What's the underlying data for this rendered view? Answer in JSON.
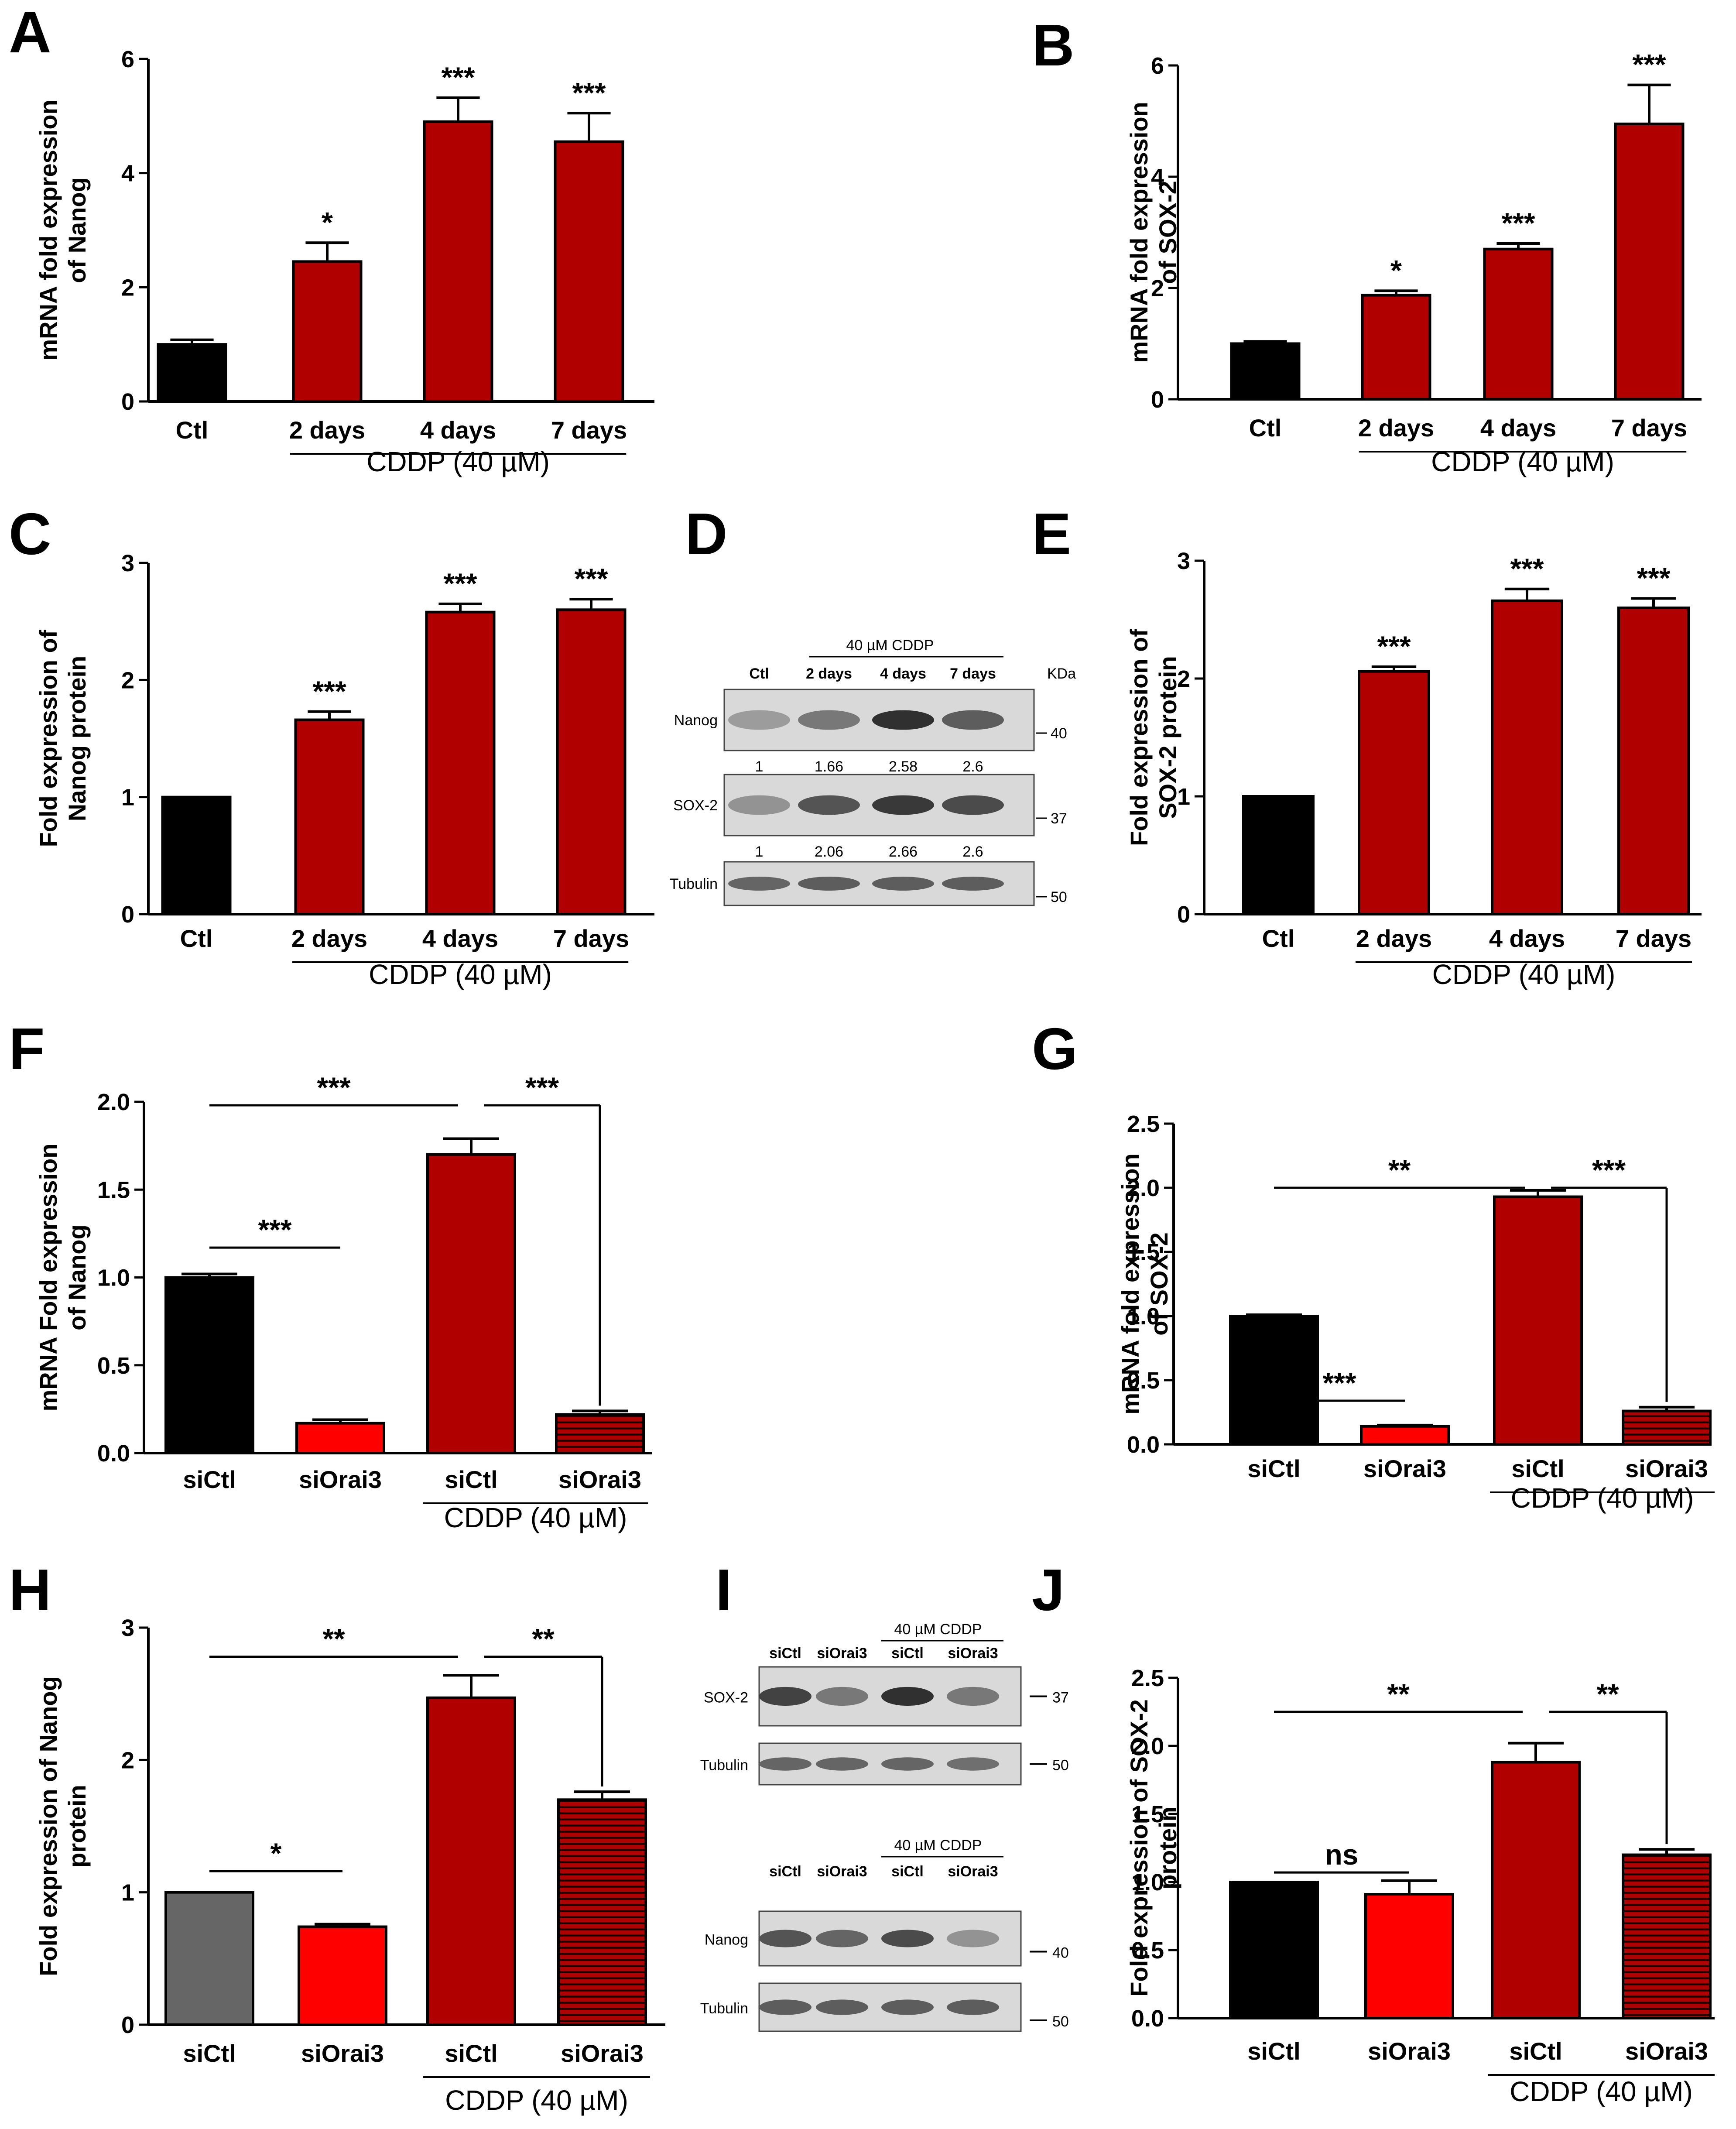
{
  "panel_labels": {
    "A": "A",
    "B": "B",
    "C": "C",
    "D": "D",
    "E": "E",
    "F": "F",
    "G": "G",
    "H": "H",
    "I": "I",
    "J": "J"
  },
  "colors": {
    "black": "#000000",
    "dark_red": "#b00000",
    "red": "#ff0000",
    "grey": "#666666"
  },
  "chart_data": [
    {
      "id": "A",
      "type": "bar",
      "ylabel": "mRNA fold expression\nof Nanog",
      "ylim": [
        0,
        6
      ],
      "yticks": [
        0,
        2,
        4,
        6
      ],
      "categories": [
        "Ctl",
        "2 days",
        "4 days",
        "7 days"
      ],
      "values": [
        1.0,
        2.45,
        4.9,
        4.55
      ],
      "errors": [
        0.08,
        0.33,
        0.42,
        0.5
      ],
      "fills": [
        "black",
        "dark_red",
        "dark_red",
        "dark_red"
      ],
      "significance": [
        "",
        "*",
        "***",
        "***"
      ],
      "group_label": "CDDP (40 µM)",
      "group_span": [
        1,
        3
      ]
    },
    {
      "id": "B",
      "type": "bar",
      "ylabel": "mRNA fold expression\nof SOX-2",
      "ylim": [
        0,
        6
      ],
      "yticks": [
        0,
        2,
        4,
        6
      ],
      "categories": [
        "Ctl",
        "2 days",
        "4 days",
        "7 days"
      ],
      "values": [
        1.0,
        1.87,
        2.7,
        4.95
      ],
      "errors": [
        0.04,
        0.08,
        0.1,
        0.7
      ],
      "fills": [
        "black",
        "dark_red",
        "dark_red",
        "dark_red"
      ],
      "significance": [
        "",
        "*",
        "***",
        "***"
      ],
      "group_label": "CDDP (40 µM)",
      "group_span": [
        1,
        3
      ]
    },
    {
      "id": "C",
      "type": "bar",
      "ylabel": "Fold expression of\nNanog protein",
      "ylim": [
        0,
        3
      ],
      "yticks": [
        0,
        1,
        2,
        3
      ],
      "categories": [
        "Ctl",
        "2 days",
        "4 days",
        "7 days"
      ],
      "values": [
        1.0,
        1.66,
        2.58,
        2.6
      ],
      "errors": [
        0.0,
        0.07,
        0.07,
        0.09
      ],
      "fills": [
        "black",
        "dark_red",
        "dark_red",
        "dark_red"
      ],
      "significance": [
        "",
        "***",
        "***",
        "***"
      ],
      "group_label": "CDDP (40 µM)",
      "group_span": [
        1,
        3
      ]
    },
    {
      "id": "E",
      "type": "bar",
      "ylabel": "Fold expression of\nSOX-2 protein",
      "ylim": [
        0,
        3
      ],
      "yticks": [
        0,
        1,
        2,
        3
      ],
      "categories": [
        "Ctl",
        "2 days",
        "4 days",
        "7 days"
      ],
      "values": [
        1.0,
        2.06,
        2.66,
        2.6
      ],
      "errors": [
        0.0,
        0.04,
        0.1,
        0.08
      ],
      "fills": [
        "black",
        "dark_red",
        "dark_red",
        "dark_red"
      ],
      "significance": [
        "",
        "***",
        "***",
        "***"
      ],
      "group_label": "CDDP (40 µM)",
      "group_span": [
        1,
        3
      ]
    },
    {
      "id": "F",
      "type": "bar",
      "ylabel": "mRNA Fold expression\nof Nanog",
      "ylim": [
        0,
        2.0
      ],
      "yticks": [
        0.0,
        0.5,
        1.0,
        1.5,
        2.0
      ],
      "categories": [
        "siCtl",
        "siOrai3",
        "siCtl",
        "siOrai3"
      ],
      "values": [
        1.0,
        0.17,
        1.7,
        0.22
      ],
      "errors": [
        0.02,
        0.02,
        0.09,
        0.02
      ],
      "fills": [
        "black",
        "red",
        "dark_red",
        "dark_red_striped"
      ],
      "comparisons": [
        {
          "from": 0,
          "to": 1,
          "label": "***",
          "y": 1.17
        },
        {
          "from": 0,
          "to": 2,
          "label": "***",
          "y": 1.98
        },
        {
          "from": 2,
          "to": 3,
          "label": "***",
          "y": 1.98
        }
      ],
      "group_label": "CDDP (40 µM)",
      "group_span": [
        2,
        3
      ]
    },
    {
      "id": "G",
      "type": "bar",
      "ylabel": "mRNA fold expression\nof SOX-2",
      "ylim": [
        0,
        2.5
      ],
      "yticks": [
        0.0,
        0.5,
        1.0,
        1.5,
        2.0,
        2.5
      ],
      "categories": [
        "siCtl",
        "siOrai3",
        "siCtl",
        "siOrai3"
      ],
      "values": [
        1.0,
        0.14,
        1.93,
        0.26
      ],
      "errors": [
        0.01,
        0.01,
        0.05,
        0.03
      ],
      "fills": [
        "black",
        "red",
        "dark_red",
        "dark_red_striped"
      ],
      "comparisons": [
        {
          "from": 0,
          "to": 1,
          "label": "***",
          "y": 0.34
        },
        {
          "from": 0,
          "to": 2,
          "label": "**",
          "y": 2.0
        },
        {
          "from": 2,
          "to": 3,
          "label": "***",
          "y": 2.0
        }
      ],
      "group_label": "CDDP (40 µM)",
      "group_span": [
        2,
        3
      ]
    },
    {
      "id": "H",
      "type": "bar",
      "ylabel": "Fold expression of Nanog\nprotein",
      "ylim": [
        0,
        3
      ],
      "yticks": [
        0,
        1,
        2,
        3
      ],
      "categories": [
        "siCtl",
        "siOrai3",
        "siCtl",
        "siOrai3"
      ],
      "values": [
        1.0,
        0.74,
        2.47,
        1.7
      ],
      "errors": [
        0.0,
        0.02,
        0.17,
        0.06
      ],
      "fills": [
        "grey",
        "red",
        "dark_red",
        "dark_red_striped"
      ],
      "comparisons": [
        {
          "from": 0,
          "to": 1,
          "label": "*",
          "y": 1.16
        },
        {
          "from": 0,
          "to": 2,
          "label": "**",
          "y": 2.78
        },
        {
          "from": 2,
          "to": 3,
          "label": "**",
          "y": 2.78
        }
      ],
      "group_label": "CDDP (40 µM)",
      "group_span": [
        2,
        3
      ]
    },
    {
      "id": "J",
      "type": "bar",
      "ylabel": "Fold expression of SOX-2\nprotein",
      "ylim": [
        0,
        2.5
      ],
      "yticks": [
        0.0,
        0.5,
        1.0,
        1.5,
        2.0,
        2.5
      ],
      "categories": [
        "siCtl",
        "siOrai3",
        "siCtl",
        "siOrai3"
      ],
      "values": [
        1.0,
        0.91,
        1.88,
        1.2
      ],
      "errors": [
        0.0,
        0.1,
        0.14,
        0.04
      ],
      "fills": [
        "black",
        "red",
        "dark_red",
        "dark_red_striped"
      ],
      "comparisons": [
        {
          "from": 0,
          "to": 1,
          "label": "ns",
          "y": 1.07
        },
        {
          "from": 0,
          "to": 2,
          "label": "**",
          "y": 2.25
        },
        {
          "from": 2,
          "to": 3,
          "label": "**",
          "y": 2.25
        }
      ],
      "group_label": "CDDP (40 µM)",
      "group_span": [
        2,
        3
      ]
    }
  ],
  "blot_D": {
    "treatment": "40 µM CDDP",
    "lanes": [
      "Ctl",
      "2 days",
      "4 days",
      "7 days"
    ],
    "kda_label": "KDa",
    "bands": [
      {
        "name": "Nanog",
        "kda": "40",
        "quant": [
          "1",
          "1.66",
          "2.58",
          "2.6"
        ],
        "intensity": [
          0.25,
          0.45,
          0.85,
          0.6
        ]
      },
      {
        "name": "SOX-2",
        "kda": "37",
        "quant": [
          "1",
          "2.06",
          "2.66",
          "2.6"
        ],
        "intensity": [
          0.3,
          0.65,
          0.8,
          0.7
        ]
      },
      {
        "name": "Tubulin",
        "kda": "50",
        "quant": [],
        "intensity": [
          0.55,
          0.6,
          0.6,
          0.6
        ]
      }
    ]
  },
  "blot_I": {
    "treatment": "40 µM CDDP",
    "top_lanes": [
      "siCtl",
      "siOrai3",
      "siCtl",
      "siOrai3"
    ],
    "bottom_lanes": [
      "siCtl",
      "siOrai3",
      "siCtl",
      "siOrai3"
    ],
    "top_bands": [
      {
        "name": "SOX-2",
        "kda": "37",
        "intensity": [
          0.75,
          0.45,
          0.85,
          0.45
        ]
      },
      {
        "name": "Tubulin",
        "kda": "50",
        "intensity": [
          0.55,
          0.55,
          0.55,
          0.5
        ]
      }
    ],
    "bottom_bands": [
      {
        "name": "Nanog",
        "kda": "40",
        "intensity": [
          0.65,
          0.55,
          0.7,
          0.3
        ]
      },
      {
        "name": "Tubulin",
        "kda": "50",
        "intensity": [
          0.6,
          0.6,
          0.6,
          0.6
        ]
      }
    ]
  }
}
